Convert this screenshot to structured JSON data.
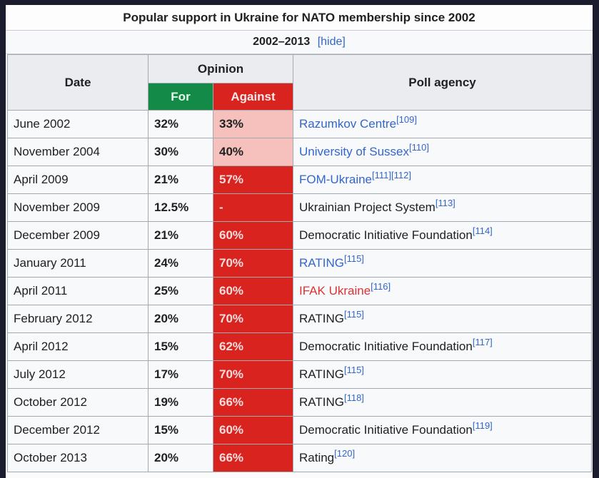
{
  "table": {
    "title": "Popular support in Ukraine for NATO membership since 2002",
    "section": {
      "label": "2002–2013",
      "toggle_label": "[hide]"
    },
    "headers": {
      "date": "Date",
      "opinion": "Opinion",
      "for": "For",
      "against": "Against",
      "agency": "Poll agency"
    },
    "colors": {
      "for_header": "#138a48",
      "against_header": "#d8231f",
      "against_light": "#f6c0bc",
      "against_dark": "#d8231f",
      "link_blue": "#3366cc",
      "link_red": "#dd3333"
    },
    "rows": [
      {
        "date": "June 2002",
        "for": "32%",
        "against": "33%",
        "agency": "Razumkov Centre",
        "ref": "[109]"
      },
      {
        "date": "November 2004",
        "for": "30%",
        "against": "40%",
        "agency": "University of Sussex",
        "ref": "[110]"
      },
      {
        "date": "April 2009",
        "for": "21%",
        "against": "57%",
        "agency": "FOM-Ukraine",
        "ref": "[111][112]"
      },
      {
        "date": "November 2009",
        "for": "12.5%",
        "against": "-",
        "agency": "Ukrainian Project System",
        "ref": "[113]"
      },
      {
        "date": "December 2009",
        "for": "21%",
        "against": "60%",
        "agency": "Democratic Initiative Foundation",
        "ref": "[114]"
      },
      {
        "date": "January 2011",
        "for": "24%",
        "against": "70%",
        "agency": "RATING",
        "ref": "[115]"
      },
      {
        "date": "April 2011",
        "for": "25%",
        "against": "60%",
        "agency": "IFAK Ukraine",
        "ref": "[116]"
      },
      {
        "date": "February 2012",
        "for": "20%",
        "against": "70%",
        "agency": "RATING",
        "ref": "[115]"
      },
      {
        "date": "April 2012",
        "for": "15%",
        "against": "62%",
        "agency": "Democratic Initiative Foundation",
        "ref": "[117]"
      },
      {
        "date": "July 2012",
        "for": "17%",
        "against": "70%",
        "agency": "RATING",
        "ref": "[115]"
      },
      {
        "date": "October 2012",
        "for": "19%",
        "against": "66%",
        "agency": "RATING",
        "ref": "[118]"
      },
      {
        "date": "December 2012",
        "for": "15%",
        "against": "60%",
        "agency": "Democratic Initiative Foundation",
        "ref": "[119]"
      },
      {
        "date": "October 2013",
        "for": "20%",
        "against": "66%",
        "agency": "Rating",
        "ref": "[120]"
      }
    ]
  }
}
